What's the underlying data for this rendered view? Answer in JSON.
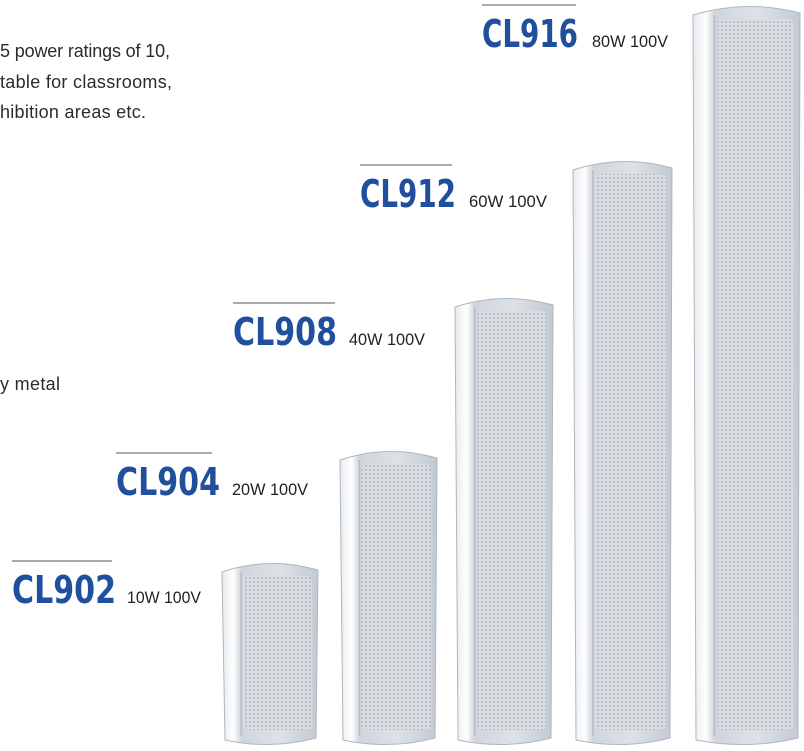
{
  "intro_lines": [
    "5 power ratings of 10,",
    "table for classrooms,",
    "hibition areas etc."
  ],
  "fragment": "y metal",
  "models": [
    {
      "name": "CL902",
      "spec": "10W 100V"
    },
    {
      "name": "CL904",
      "spec": "20W 100V"
    },
    {
      "name": "CL908",
      "spec": "40W 100V"
    },
    {
      "name": "CL912",
      "spec": "60W 100V"
    },
    {
      "name": "CL916",
      "spec": "80W 100V"
    }
  ]
}
